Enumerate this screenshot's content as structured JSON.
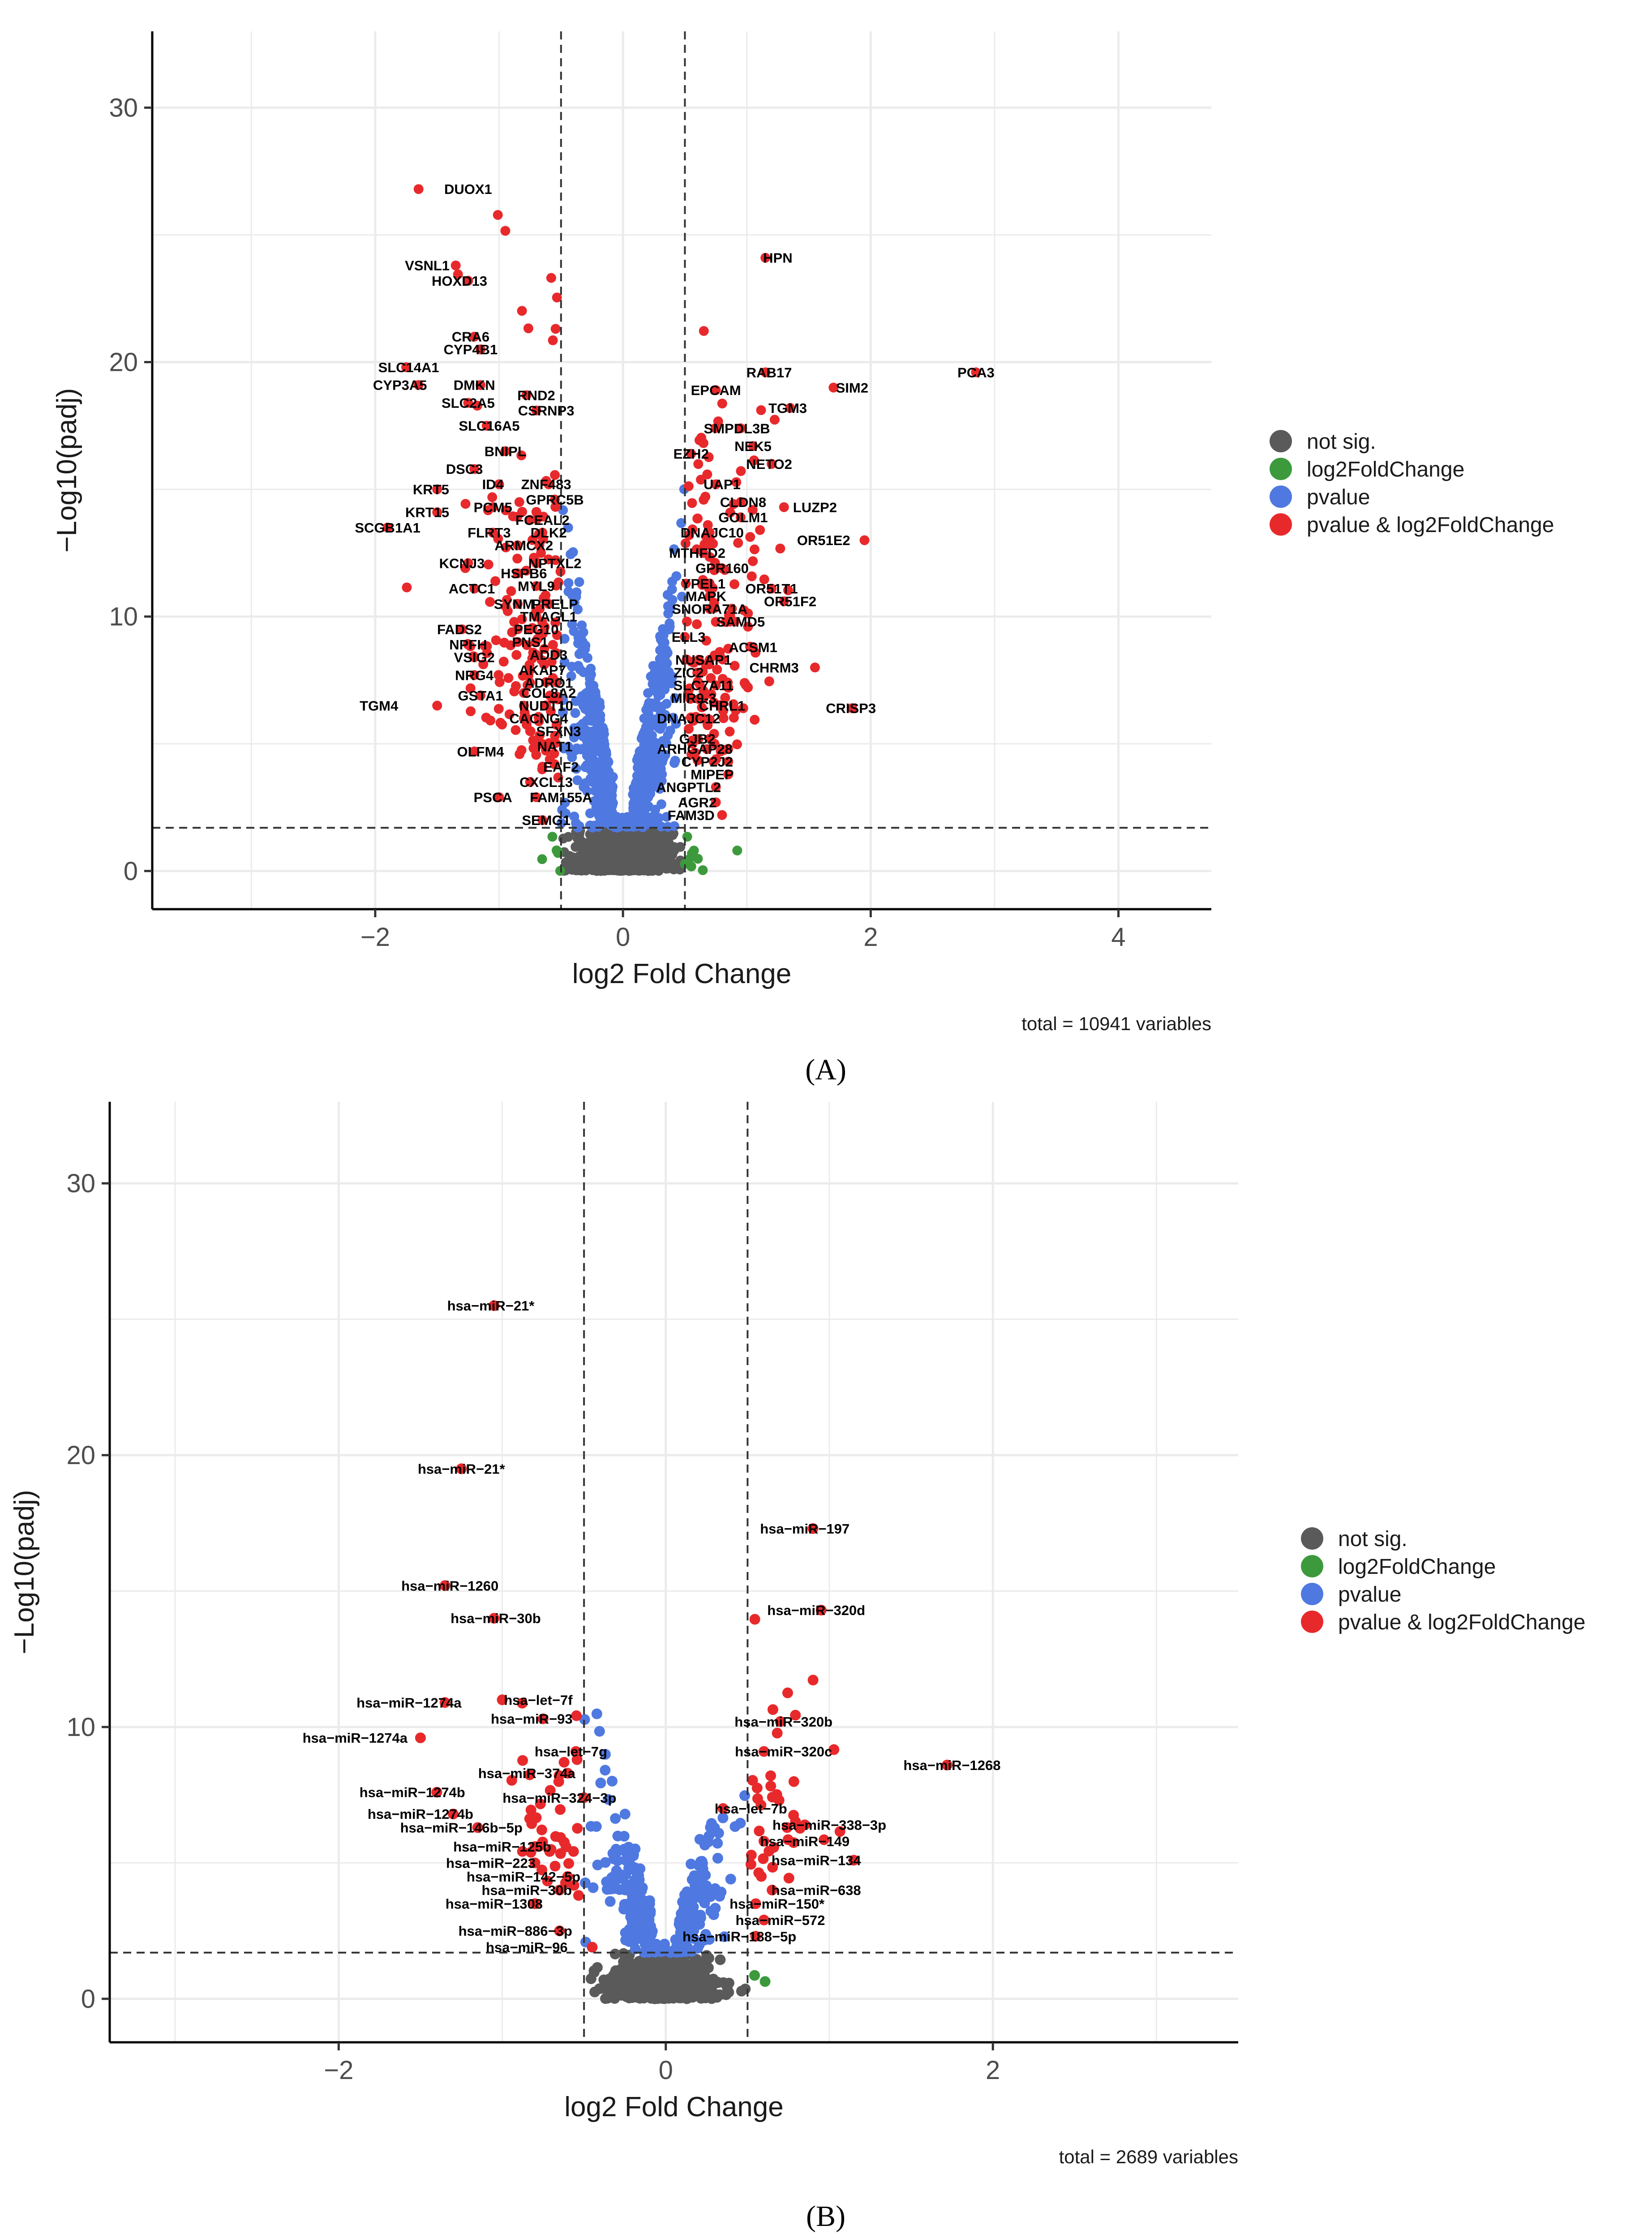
{
  "chart_data": [
    {
      "panel": "A",
      "type": "scatter",
      "title": "",
      "xlabel": "log2 Fold Change",
      "ylabel": "−Log10(padj)",
      "xlim": [
        -3.8,
        4.75
      ],
      "ylim": [
        -1.5,
        33
      ],
      "xticks": [
        -2,
        0,
        2,
        4
      ],
      "yticks": [
        0,
        10,
        20,
        30
      ],
      "vlines": [
        -0.5,
        0.5
      ],
      "hline": 1.7,
      "caption": "total = 10941 variables",
      "legend": {
        "position": "right",
        "items": [
          {
            "label": "not sig.",
            "color": "#5a5a5a"
          },
          {
            "label": "log2FoldChange",
            "color": "#3c9a3c"
          },
          {
            "label": "pvalue",
            "color": "#4f79e0"
          },
          {
            "label": "pvalue & log2FoldChange",
            "color": "#e8292b"
          }
        ]
      },
      "point_count": 10941,
      "labels": [
        {
          "text": "DUOX1",
          "x": -1.65,
          "y": 26.8,
          "lx": -1.25
        },
        {
          "text": "VSNL1",
          "x": -1.35,
          "y": 23.8,
          "lx": -1.58
        },
        {
          "text": "HOXD13",
          "x": -1.25,
          "y": 23.2,
          "lx": -1.32
        },
        {
          "text": "CRA6",
          "x": -1.2,
          "y": 21.0,
          "lx": -1.23
        },
        {
          "text": "CYP4B1",
          "x": -1.15,
          "y": 20.5,
          "lx": -1.23
        },
        {
          "text": "SLC14A1",
          "x": -1.75,
          "y": 19.8,
          "lx": -1.73
        },
        {
          "text": "CYP3A5",
          "x": -1.65,
          "y": 19.1,
          "lx": -1.8
        },
        {
          "text": "DMKN",
          "x": -1.15,
          "y": 19.1,
          "lx": -1.2
        },
        {
          "text": "SLC2A5",
          "x": -1.25,
          "y": 18.4,
          "lx": -1.25
        },
        {
          "text": "RND2",
          "x": -0.78,
          "y": 18.7,
          "lx": -0.7
        },
        {
          "text": "CSRNP3",
          "x": -0.7,
          "y": 18.1,
          "lx": -0.62
        },
        {
          "text": "SLC16A5",
          "x": -1.1,
          "y": 17.5,
          "lx": -1.08
        },
        {
          "text": "BNIPL",
          "x": -0.95,
          "y": 16.5,
          "lx": -0.95
        },
        {
          "text": "DSC3",
          "x": -1.2,
          "y": 15.8,
          "lx": -1.28
        },
        {
          "text": "ID4",
          "x": -1.0,
          "y": 15.2,
          "lx": -1.05
        },
        {
          "text": "ZNF483",
          "x": -0.6,
          "y": 15.2,
          "lx": -0.62
        },
        {
          "text": "KRT5",
          "x": -1.5,
          "y": 15.0,
          "lx": -1.55
        },
        {
          "text": "GPRC5B",
          "x": -0.55,
          "y": 14.6,
          "lx": -0.55
        },
        {
          "text": "PCM5",
          "x": -1.05,
          "y": 14.3,
          "lx": -1.05
        },
        {
          "text": "KRT15",
          "x": -1.5,
          "y": 14.1,
          "lx": -1.58
        },
        {
          "text": "FCEAL2",
          "x": -0.75,
          "y": 13.8,
          "lx": -0.65
        },
        {
          "text": "SCGB1A1",
          "x": -1.9,
          "y": 13.5,
          "lx": -1.9
        },
        {
          "text": "FLRT3",
          "x": -1.05,
          "y": 13.3,
          "lx": -1.08
        },
        {
          "text": "DLK2",
          "x": -0.65,
          "y": 13.3,
          "lx": -0.6
        },
        {
          "text": "ARMCX2",
          "x": -0.85,
          "y": 12.8,
          "lx": -0.8
        },
        {
          "text": "NPTXL2",
          "x": -0.7,
          "y": 12.1,
          "lx": -0.55
        },
        {
          "text": "KCNJ3",
          "x": -1.25,
          "y": 12.1,
          "lx": -1.3
        },
        {
          "text": "HSPB6",
          "x": -0.85,
          "y": 11.7,
          "lx": -0.8
        },
        {
          "text": "MYL9",
          "x": -0.7,
          "y": 11.2,
          "lx": -0.7
        },
        {
          "text": "ACTC1",
          "x": -1.2,
          "y": 11.1,
          "lx": -1.22
        },
        {
          "text": "SYNM",
          "x": -0.85,
          "y": 10.5,
          "lx": -0.88
        },
        {
          "text": "PRELP",
          "x": -0.6,
          "y": 10.5,
          "lx": -0.55
        },
        {
          "text": "TMAGL1",
          "x": -0.7,
          "y": 10.0,
          "lx": -0.6
        },
        {
          "text": "FADS2",
          "x": -1.3,
          "y": 9.5,
          "lx": -1.32
        },
        {
          "text": "PEG10",
          "x": -0.85,
          "y": 9.5,
          "lx": -0.7
        },
        {
          "text": "NPFH",
          "x": -1.25,
          "y": 8.9,
          "lx": -1.25
        },
        {
          "text": "PNS1",
          "x": -0.85,
          "y": 9.0,
          "lx": -0.75
        },
        {
          "text": "VSIG2",
          "x": -1.2,
          "y": 8.4,
          "lx": -1.2
        },
        {
          "text": "ADD3",
          "x": -0.7,
          "y": 8.5,
          "lx": -0.6
        },
        {
          "text": "NRG4",
          "x": -1.2,
          "y": 7.7,
          "lx": -1.2
        },
        {
          "text": "AKAP7",
          "x": -0.75,
          "y": 7.9,
          "lx": -0.65
        },
        {
          "text": "ADRO1",
          "x": -0.75,
          "y": 7.4,
          "lx": -0.6
        },
        {
          "text": "GSTA1",
          "x": -1.15,
          "y": 6.9,
          "lx": -1.15
        },
        {
          "text": "COL8A2",
          "x": -0.8,
          "y": 7.0,
          "lx": -0.6
        },
        {
          "text": "NUDT10",
          "x": -0.8,
          "y": 6.5,
          "lx": -0.62
        },
        {
          "text": "TGM4",
          "x": -1.5,
          "y": 6.5,
          "lx": -1.97
        },
        {
          "text": "CACNG4",
          "x": -0.8,
          "y": 6.0,
          "lx": -0.68
        },
        {
          "text": "SFXN3",
          "x": -0.75,
          "y": 5.5,
          "lx": -0.52
        },
        {
          "text": "NAT1",
          "x": -0.7,
          "y": 4.9,
          "lx": -0.55
        },
        {
          "text": "OLFM4",
          "x": -1.2,
          "y": 4.7,
          "lx": -1.15
        },
        {
          "text": "EAF2",
          "x": -0.65,
          "y": 4.1,
          "lx": -0.5
        },
        {
          "text": "CXCL13",
          "x": -0.75,
          "y": 3.5,
          "lx": -0.62
        },
        {
          "text": "PSCA",
          "x": -1.0,
          "y": 2.9,
          "lx": -1.05
        },
        {
          "text": "FAM155A",
          "x": -0.7,
          "y": 2.9,
          "lx": -0.5
        },
        {
          "text": "SEMG1",
          "x": -0.65,
          "y": 2.0,
          "lx": -0.62
        },
        {
          "text": "HPN",
          "x": 1.15,
          "y": 24.1,
          "lx": 1.25
        },
        {
          "text": "PCA3",
          "x": 2.85,
          "y": 19.6,
          "lx": 2.85
        },
        {
          "text": "RAB17",
          "x": 1.15,
          "y": 19.6,
          "lx": 1.18
        },
        {
          "text": "SIM2",
          "x": 1.7,
          "y": 19.0,
          "lx": 1.85
        },
        {
          "text": "EPCAM",
          "x": 0.75,
          "y": 18.9,
          "lx": 0.75
        },
        {
          "text": "TGM3",
          "x": 1.35,
          "y": 18.2,
          "lx": 1.33
        },
        {
          "text": "SMPDL3B",
          "x": 0.95,
          "y": 17.4,
          "lx": 0.92
        },
        {
          "text": "NEK5",
          "x": 1.05,
          "y": 16.7,
          "lx": 1.05
        },
        {
          "text": "EZH2",
          "x": 0.55,
          "y": 16.4,
          "lx": 0.55
        },
        {
          "text": "NETO2",
          "x": 1.2,
          "y": 16.0,
          "lx": 1.18
        },
        {
          "text": "UAP1",
          "x": 0.75,
          "y": 15.2,
          "lx": 0.8
        },
        {
          "text": "CLDN8",
          "x": 0.95,
          "y": 14.5,
          "lx": 0.97
        },
        {
          "text": "LUZP2",
          "x": 1.3,
          "y": 14.3,
          "lx": 1.55
        },
        {
          "text": "GOLM1",
          "x": 0.95,
          "y": 13.9,
          "lx": 0.97
        },
        {
          "text": "DNAJC10",
          "x": 0.7,
          "y": 13.3,
          "lx": 0.72
        },
        {
          "text": "OR51E2",
          "x": 1.95,
          "y": 13.0,
          "lx": 1.62
        },
        {
          "text": "MTHFD2",
          "x": 0.65,
          "y": 12.5,
          "lx": 0.6
        },
        {
          "text": "GPR160",
          "x": 0.8,
          "y": 11.9,
          "lx": 0.8
        },
        {
          "text": "YPEL1",
          "x": 0.7,
          "y": 11.3,
          "lx": 0.65
        },
        {
          "text": "OR51T1",
          "x": 1.2,
          "y": 11.1,
          "lx": 1.2
        },
        {
          "text": "MAPK",
          "x": 0.7,
          "y": 10.8,
          "lx": 0.67
        },
        {
          "text": "OR51F2",
          "x": 1.3,
          "y": 10.6,
          "lx": 1.35
        },
        {
          "text": "SNORA71A",
          "x": 0.7,
          "y": 10.3,
          "lx": 0.7
        },
        {
          "text": "SAMD5",
          "x": 0.9,
          "y": 9.8,
          "lx": 0.95
        },
        {
          "text": "ELL3",
          "x": 0.5,
          "y": 9.2,
          "lx": 0.53
        },
        {
          "text": "ACSM1",
          "x": 1.05,
          "y": 8.8,
          "lx": 1.05
        },
        {
          "text": "NUSAP1",
          "x": 0.7,
          "y": 8.3,
          "lx": 0.65
        },
        {
          "text": "CHRM3",
          "x": 1.55,
          "y": 8.0,
          "lx": 1.22
        },
        {
          "text": "ZIC2",
          "x": 0.6,
          "y": 7.8,
          "lx": 0.53
        },
        {
          "text": "SLC7A11",
          "x": 0.75,
          "y": 7.3,
          "lx": 0.65
        },
        {
          "text": "MIR9-3",
          "x": 0.65,
          "y": 6.8,
          "lx": 0.57
        },
        {
          "text": "CRISP3",
          "x": 1.85,
          "y": 6.4,
          "lx": 1.84
        },
        {
          "text": "CHRL1",
          "x": 0.8,
          "y": 6.5,
          "lx": 0.8
        },
        {
          "text": "DNAJC12",
          "x": 0.65,
          "y": 6.0,
          "lx": 0.53
        },
        {
          "text": "GJB2",
          "x": 0.7,
          "y": 5.2,
          "lx": 0.6
        },
        {
          "text": "ARHGAP28",
          "x": 0.85,
          "y": 4.8,
          "lx": 0.58
        },
        {
          "text": "CYP2J2",
          "x": 0.85,
          "y": 4.3,
          "lx": 0.68
        },
        {
          "text": "MIPEP",
          "x": 0.85,
          "y": 3.8,
          "lx": 0.72
        },
        {
          "text": "ANGPTL2",
          "x": 0.75,
          "y": 3.3,
          "lx": 0.53
        },
        {
          "text": "AGR2",
          "x": 0.75,
          "y": 2.7,
          "lx": 0.6
        },
        {
          "text": "FAM3D",
          "x": 0.8,
          "y": 2.2,
          "lx": 0.55
        }
      ]
    },
    {
      "panel": "B",
      "type": "scatter",
      "title": "",
      "xlabel": "log2 Fold Change",
      "ylabel": "−Log10(padj)",
      "xlim": [
        -3.4,
        3.5
      ],
      "ylim": [
        -1.6,
        33
      ],
      "xticks": [
        -2,
        0,
        2
      ],
      "yticks": [
        0,
        10,
        20,
        30
      ],
      "vlines": [
        -0.5,
        0.5
      ],
      "hline": 1.7,
      "caption": "total = 2689 variables",
      "legend": {
        "position": "right",
        "items": [
          {
            "label": "not sig.",
            "color": "#5a5a5a"
          },
          {
            "label": "log2FoldChange",
            "color": "#3c9a3c"
          },
          {
            "label": "pvalue",
            "color": "#4f79e0"
          },
          {
            "label": "pvalue & log2FoldChange",
            "color": "#e8292b"
          }
        ]
      },
      "point_count": 2689,
      "labels": [
        {
          "text": "hsa−miR−21*",
          "x": -1.05,
          "y": 25.5,
          "lx": -1.07
        },
        {
          "text": "hsa−miR−21*",
          "x": -1.25,
          "y": 19.5,
          "lx": -1.25
        },
        {
          "text": "hsa−miR−197",
          "x": 0.9,
          "y": 17.3,
          "lx": 0.85
        },
        {
          "text": "hsa−miR−1260",
          "x": -1.35,
          "y": 15.2,
          "lx": -1.32
        },
        {
          "text": "hsa−miR−320d",
          "x": 0.95,
          "y": 14.3,
          "lx": 0.92
        },
        {
          "text": "hsa−miR−30b",
          "x": -1.05,
          "y": 14.0,
          "lx": -1.04
        },
        {
          "text": "hsa−let−7f",
          "x": -1.0,
          "y": 11.0,
          "lx": -0.78
        },
        {
          "text": "hsa−miR−1274a",
          "x": -1.35,
          "y": 10.9,
          "lx": -1.57
        },
        {
          "text": "hsa−miR−93",
          "x": -0.75,
          "y": 10.3,
          "lx": -0.82
        },
        {
          "text": "hsa−miR−320b",
          "x": 0.7,
          "y": 10.2,
          "lx": 0.72
        },
        {
          "text": "hsa−miR−1274a",
          "x": -1.5,
          "y": 9.6,
          "lx": -1.9
        },
        {
          "text": "hsa−miR−320c",
          "x": 0.6,
          "y": 9.1,
          "lx": 0.72
        },
        {
          "text": "hsa−let−7g",
          "x": -0.55,
          "y": 9.1,
          "lx": -0.58
        },
        {
          "text": "hsa−miR−1268",
          "x": 1.72,
          "y": 8.6,
          "lx": 1.75
        },
        {
          "text": "hsa−miR−374a",
          "x": -0.6,
          "y": 8.3,
          "lx": -0.85
        },
        {
          "text": "hsa−miR−1274b",
          "x": -1.4,
          "y": 7.6,
          "lx": -1.55
        },
        {
          "text": "hsa−miR−324−3p",
          "x": -0.5,
          "y": 7.4,
          "lx": -0.65
        },
        {
          "text": "hsa−let−7b",
          "x": 0.35,
          "y": 7.0,
          "lx": 0.52
        },
        {
          "text": "hsa−miR−1274b",
          "x": -1.3,
          "y": 6.8,
          "lx": -1.5
        },
        {
          "text": "hsa−miR−338−3p",
          "x": 0.85,
          "y": 6.4,
          "lx": 1.0
        },
        {
          "text": "hsa−miR−146b−5p",
          "x": -1.15,
          "y": 6.3,
          "lx": -1.25
        },
        {
          "text": "hsa−miR−149",
          "x": 0.6,
          "y": 5.8,
          "lx": 0.85
        },
        {
          "text": "hsa−miR−125b",
          "x": -0.8,
          "y": 5.6,
          "lx": -1.0
        },
        {
          "text": "hsa−miR−134",
          "x": 1.15,
          "y": 5.1,
          "lx": 0.92
        },
        {
          "text": "hsa−miR−223",
          "x": -0.8,
          "y": 5.0,
          "lx": -1.07
        },
        {
          "text": "hsa−miR−142−5p",
          "x": -0.6,
          "y": 4.5,
          "lx": -0.87
        },
        {
          "text": "hsa−miR−638",
          "x": 0.65,
          "y": 4.0,
          "lx": 0.92
        },
        {
          "text": "hsa−miR−30b",
          "x": -0.65,
          "y": 4.0,
          "lx": -0.85
        },
        {
          "text": "hsa−miR−1308",
          "x": -0.8,
          "y": 3.5,
          "lx": -1.05
        },
        {
          "text": "hsa−miR−150*",
          "x": 0.55,
          "y": 3.5,
          "lx": 0.68
        },
        {
          "text": "hsa−miR−572",
          "x": 0.6,
          "y": 2.9,
          "lx": 0.7
        },
        {
          "text": "hsa−miR−886−3p",
          "x": -0.65,
          "y": 2.5,
          "lx": -0.92
        },
        {
          "text": "hsa−miR−188−5p",
          "x": 0.55,
          "y": 2.3,
          "lx": 0.45
        },
        {
          "text": "hsa−miR−96",
          "x": -0.45,
          "y": 1.9,
          "lx": -0.85
        }
      ]
    }
  ],
  "panels": {
    "a_label": "(A)",
    "b_label": "(B)"
  }
}
